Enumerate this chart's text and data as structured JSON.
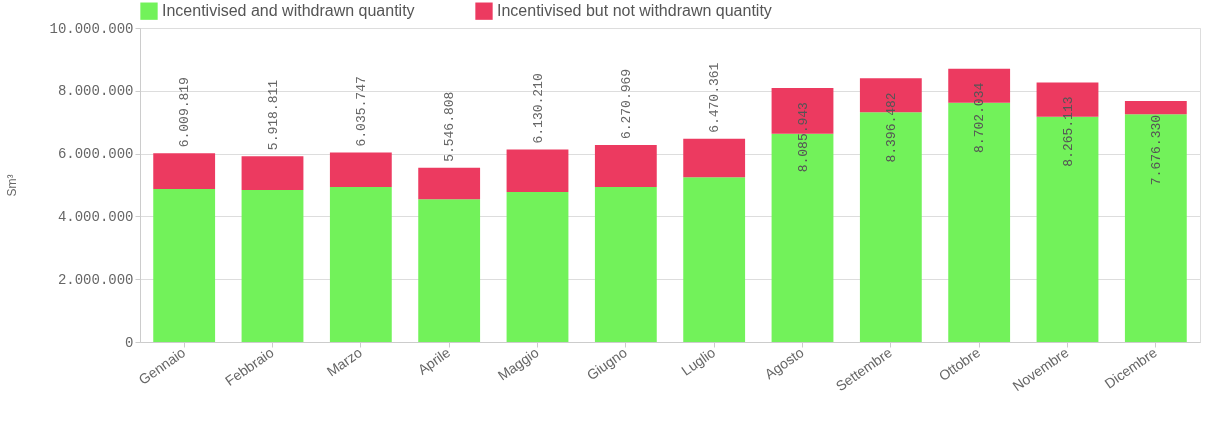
{
  "chart_data": {
    "type": "bar",
    "stacked": true,
    "ylabel": "Sm³",
    "categories": [
      "Gennaio",
      "Febbraio",
      "Marzo",
      "Aprile",
      "Maggio",
      "Giugno",
      "Luglio",
      "Agosto",
      "Settembre",
      "Ottobre",
      "Novembre",
      "Dicembre"
    ],
    "series": [
      {
        "name": "Incentivised and withdrawn quantity",
        "color": "#72f25a",
        "values": [
          4870000,
          4840000,
          4940000,
          4550000,
          4780000,
          4940000,
          5250000,
          6630000,
          7320000,
          7620000,
          7170000,
          7250000
        ]
      },
      {
        "name": "Incentivised but not withdrawn quantity",
        "color": "#ec3a60",
        "values": [
          1139819,
          1078811,
          1095747,
          996808,
          1350210,
          1330969,
          1220361,
          1455943,
          1076482,
          1082034,
          1095113,
          426330
        ]
      }
    ],
    "totals": [
      "6.009.819",
      "5.918.811",
      "6.035.747",
      "5.546.808",
      "6.130.210",
      "6.270.969",
      "6.470.361",
      "8.085.943",
      "8.396.482",
      "8.702.034",
      "8.265.113",
      "7.676.330"
    ],
    "ylim": [
      0,
      10000000
    ],
    "yticks": [
      {
        "value": 0,
        "label": "0"
      },
      {
        "value": 2000000,
        "label": "2.000.000"
      },
      {
        "value": 4000000,
        "label": "4.000.000"
      },
      {
        "value": 6000000,
        "label": "6.000.000"
      },
      {
        "value": 8000000,
        "label": "8.000.000"
      },
      {
        "value": 10000000,
        "label": "10.000.000"
      }
    ],
    "grid": "y",
    "legend": "top"
  }
}
